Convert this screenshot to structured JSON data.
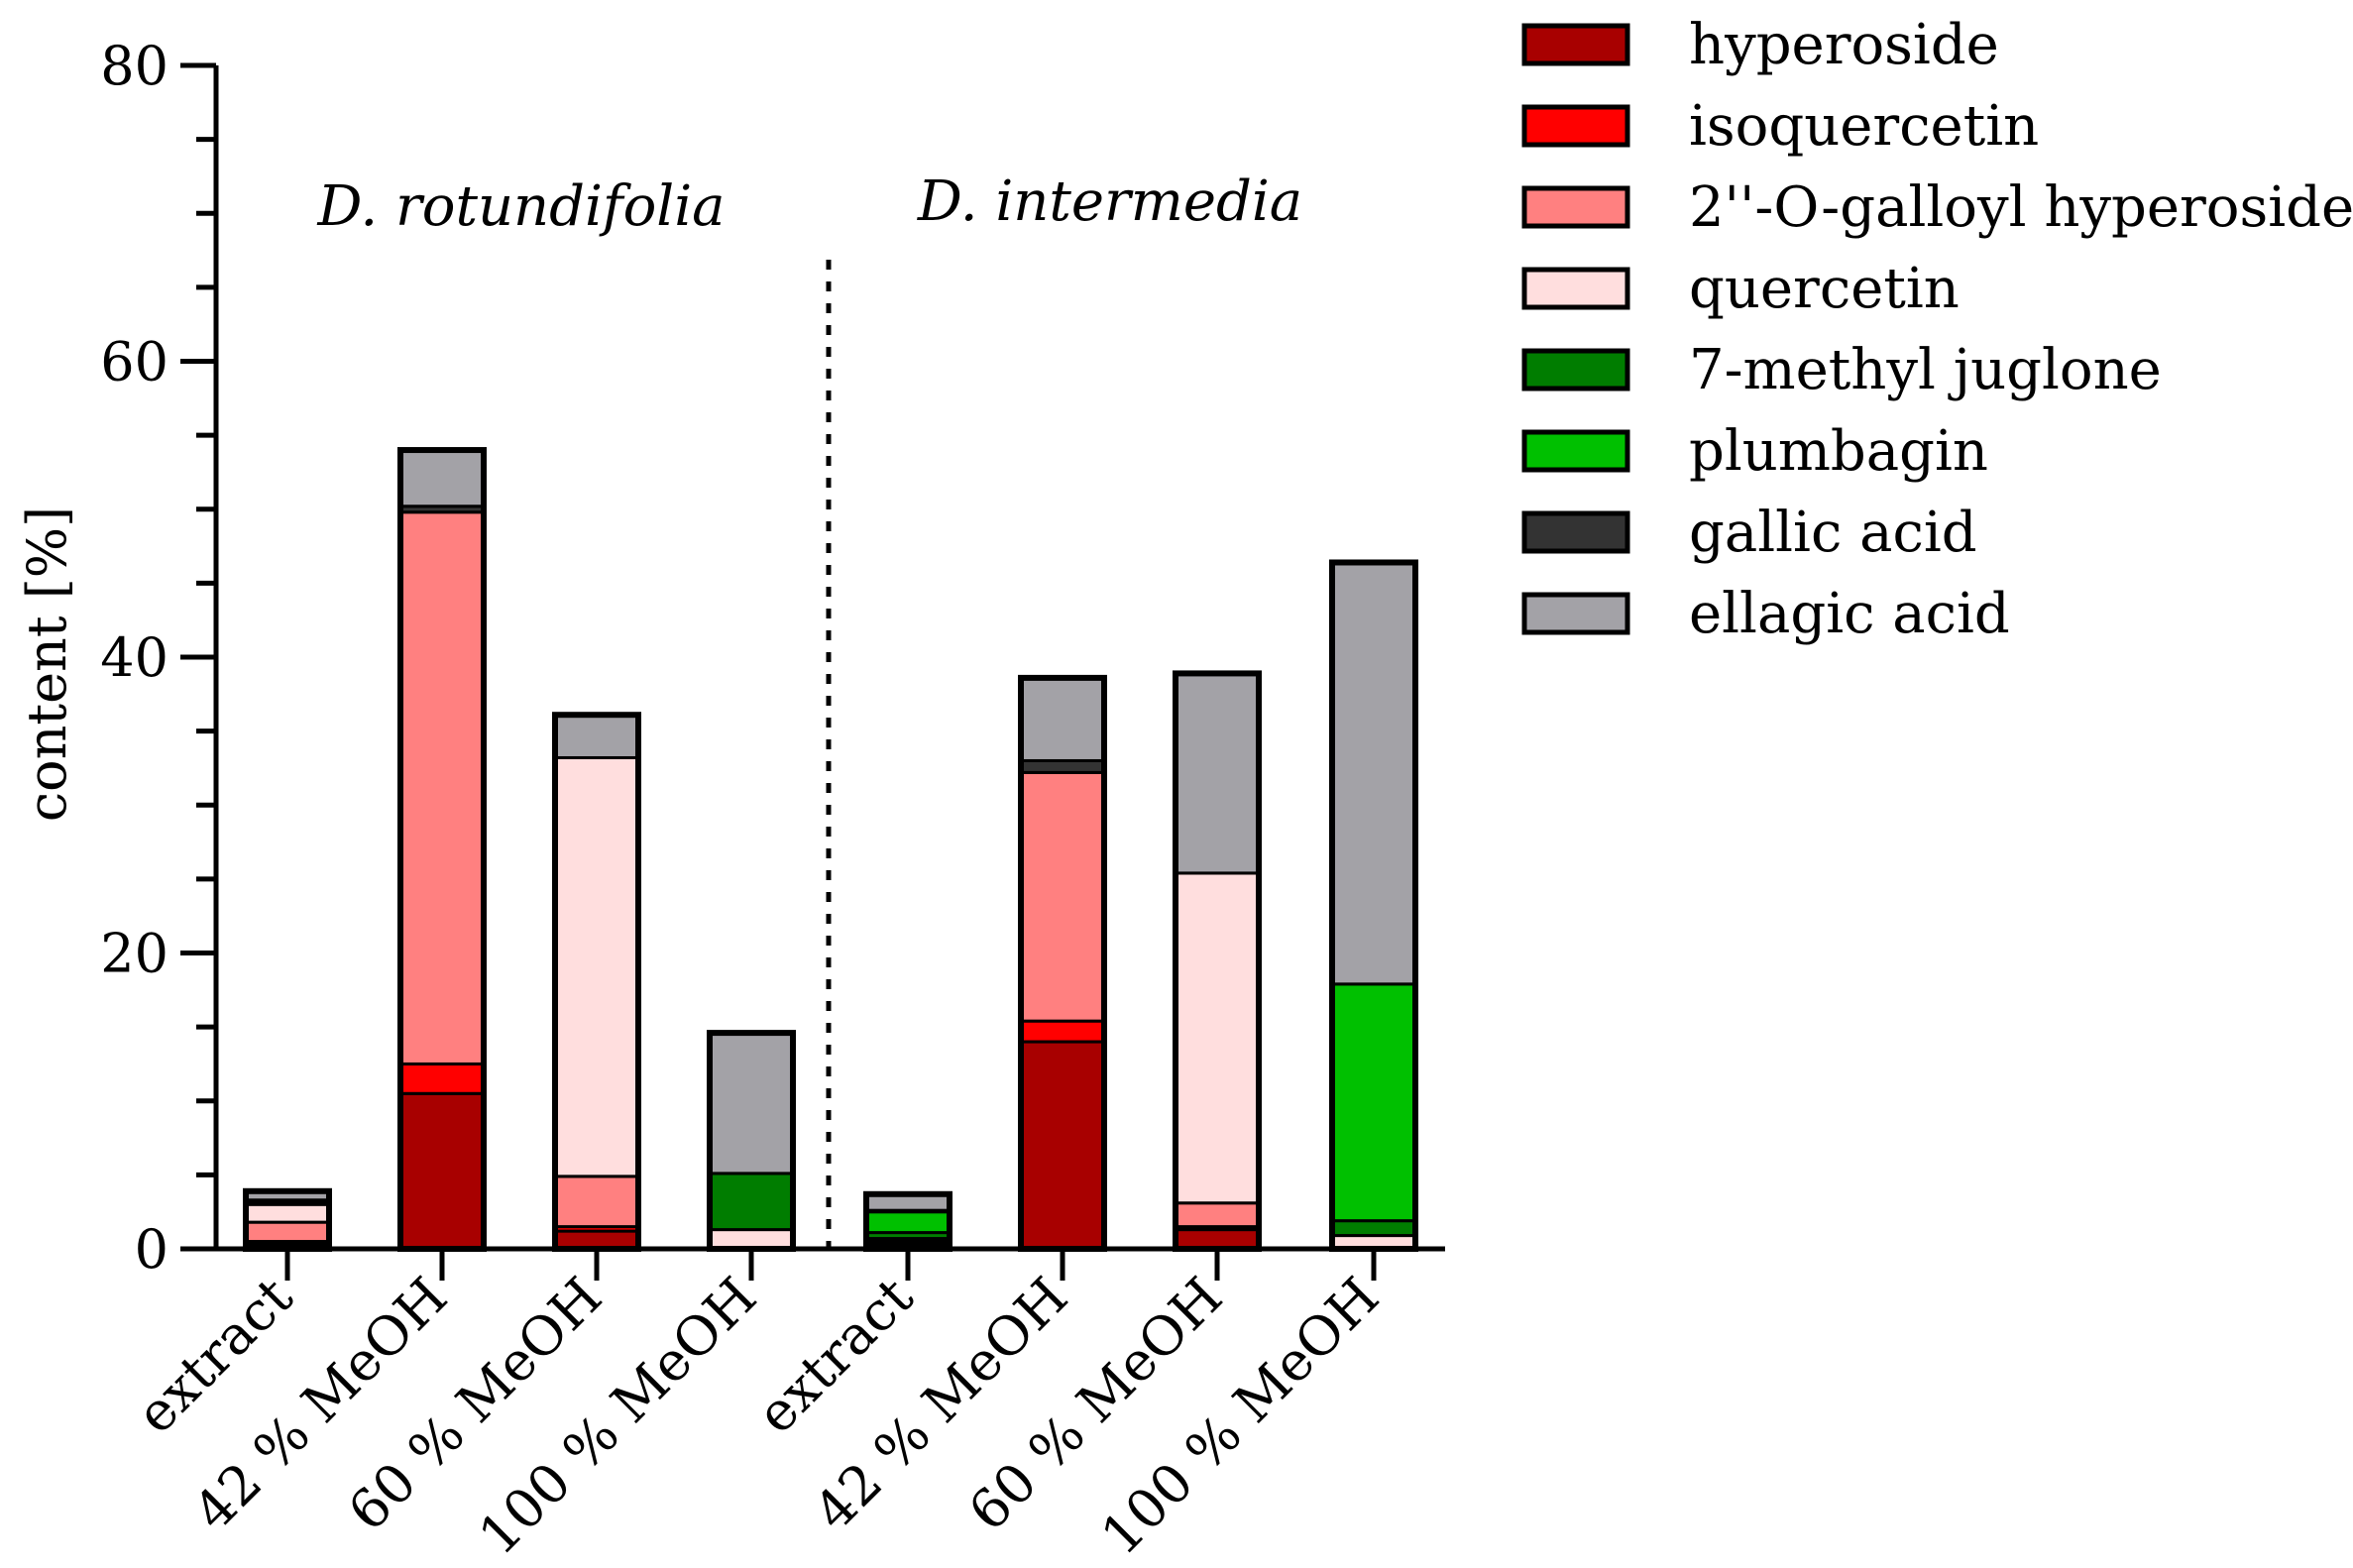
{
  "chart_data": {
    "type": "bar",
    "stacked": true,
    "ylabel": "content [%]",
    "ylim": [
      0,
      80
    ],
    "yticks": [
      0,
      20,
      40,
      60,
      80
    ],
    "groups": [
      {
        "label": "D. rotundifolia",
        "categories": [
          "extract",
          "42 % MeOH",
          "60 % MeOH",
          "100 % MeOH"
        ]
      },
      {
        "label": "D. intermedia",
        "categories": [
          "extract",
          "42 % MeOH",
          "60 % MeOH",
          "100 % MeOH"
        ]
      }
    ],
    "categories": [
      "extract",
      "42 % MeOH",
      "60 % MeOH",
      "100 % MeOH",
      "extract",
      "42 % MeOH",
      "60 % MeOH",
      "100 % MeOH"
    ],
    "series": [
      {
        "name": "hyperoside",
        "color": "#a80000",
        "values": [
          0.3,
          10.5,
          1.2,
          0.0,
          0.3,
          14.0,
          1.3,
          0.0
        ]
      },
      {
        "name": "isoquercetin",
        "color": "#ff0000",
        "values": [
          0.2,
          2.0,
          0.3,
          0.0,
          0.1,
          1.4,
          0.2,
          0.0
        ]
      },
      {
        "name": "2''-O-galloyl hyperoside",
        "color": "#ff8080",
        "values": [
          1.3,
          37.3,
          3.4,
          0.0,
          0.1,
          16.8,
          1.6,
          0.0
        ]
      },
      {
        "name": "quercetin",
        "color": "#ffdede",
        "values": [
          1.2,
          0.0,
          28.3,
          1.3,
          0.2,
          0.0,
          22.3,
          0.9
        ]
      },
      {
        "name": "7-methyl juglone",
        "color": "#007d00",
        "values": [
          0.1,
          0.0,
          0.0,
          3.8,
          0.4,
          0.0,
          0.0,
          1.0
        ]
      },
      {
        "name": "plumbagin",
        "color": "#00c000",
        "values": [
          0.0,
          0.0,
          0.0,
          0.0,
          1.4,
          0.0,
          0.0,
          16.0
        ]
      },
      {
        "name": "gallic acid",
        "color": "#333333",
        "values": [
          0.2,
          0.4,
          0.0,
          0.0,
          0.1,
          0.8,
          0.0,
          0.0
        ]
      },
      {
        "name": "ellagic acid",
        "color": "#a3a2a7",
        "values": [
          0.6,
          3.8,
          2.9,
          9.5,
          1.1,
          5.6,
          13.5,
          28.5
        ]
      }
    ]
  }
}
